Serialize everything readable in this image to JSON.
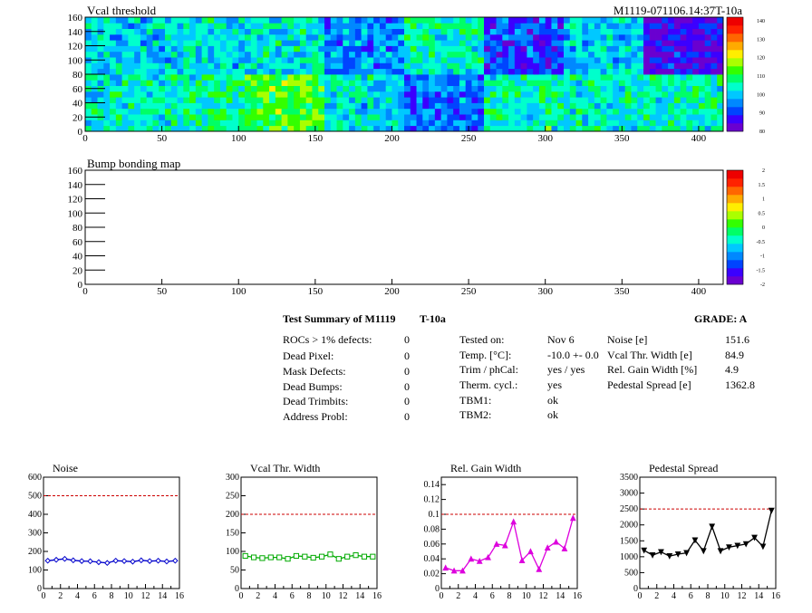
{
  "colors": {
    "palette": [
      "#6a00d0",
      "#3b00ff",
      "#0044ff",
      "#0088ff",
      "#00c8ff",
      "#00ffcc",
      "#00ff66",
      "#33ff00",
      "#aaff00",
      "#ffee00",
      "#ffaa00",
      "#ff6600",
      "#ff2200",
      "#ee0000"
    ],
    "ref_line": "#cc0000",
    "noise": "#0000cc",
    "vcal": "#00aa00",
    "gain": "#dd00dd",
    "ped": "#000000"
  },
  "chart_data": [
    {
      "type": "heatmap",
      "title": "Vcal threshold",
      "id_label": "M1119-071106.14:37T-10a",
      "xlim": [
        0,
        416
      ],
      "ylim": [
        0,
        160
      ],
      "xticks": [
        0,
        50,
        100,
        150,
        200,
        250,
        300,
        350,
        400
      ],
      "yticks": [
        0,
        20,
        40,
        60,
        80,
        100,
        120,
        140,
        160
      ],
      "colorbar": {
        "range": [
          80,
          142
        ],
        "ticks": [
          80,
          90,
          100,
          110,
          120,
          130,
          140
        ]
      },
      "rocs_top": [
        100,
        102,
        103,
        96,
        105,
        90,
        100,
        86
      ],
      "rocs_bottom": [
        104,
        105,
        112,
        102,
        94,
        106,
        104,
        105
      ]
    },
    {
      "type": "heatmap",
      "title": "Bump bonding map",
      "xlim": [
        0,
        416
      ],
      "ylim": [
        0,
        160
      ],
      "xticks": [
        0,
        50,
        100,
        150,
        200,
        250,
        300,
        350,
        400
      ],
      "yticks": [
        0,
        20,
        40,
        60,
        80,
        100,
        120,
        140,
        160
      ],
      "colorbar": {
        "range": [
          -2,
          2
        ],
        "ticks": [
          -2,
          -1.5,
          -1,
          -0.5,
          0,
          0.5,
          1,
          1.5,
          2
        ]
      }
    },
    {
      "type": "line",
      "title": "Noise",
      "xlim": [
        0,
        16
      ],
      "ylim": [
        0,
        600
      ],
      "xticks": [
        0,
        2,
        4,
        6,
        8,
        10,
        12,
        14,
        16
      ],
      "yticks": [
        0,
        100,
        200,
        300,
        400,
        500,
        600
      ],
      "ref": 500,
      "marker": "diamond",
      "x": [
        0.5,
        1.5,
        2.5,
        3.5,
        4.5,
        5.5,
        6.5,
        7.5,
        8.5,
        9.5,
        10.5,
        11.5,
        12.5,
        13.5,
        14.5,
        15.5
      ],
      "y": [
        150,
        155,
        160,
        152,
        148,
        147,
        142,
        138,
        150,
        148,
        145,
        152,
        148,
        150,
        146,
        150
      ]
    },
    {
      "type": "line",
      "title": "Vcal Thr. Width",
      "xlim": [
        0,
        16
      ],
      "ylim": [
        0,
        300
      ],
      "xticks": [
        0,
        2,
        4,
        6,
        8,
        10,
        12,
        14,
        16
      ],
      "yticks": [
        0,
        50,
        100,
        150,
        200,
        250,
        300
      ],
      "ref": 200,
      "marker": "square",
      "x": [
        0.5,
        1.5,
        2.5,
        3.5,
        4.5,
        5.5,
        6.5,
        7.5,
        8.5,
        9.5,
        10.5,
        11.5,
        12.5,
        13.5,
        14.5,
        15.5
      ],
      "y": [
        88,
        84,
        82,
        84,
        84,
        80,
        88,
        86,
        83,
        86,
        92,
        80,
        86,
        90,
        86,
        86
      ]
    },
    {
      "type": "line",
      "title": "Rel. Gain Width",
      "xlim": [
        0,
        16
      ],
      "ylim": [
        0,
        0.15
      ],
      "xticks": [
        0,
        2,
        4,
        6,
        8,
        10,
        12,
        14,
        16
      ],
      "yticks": [
        0,
        0.02,
        0.04,
        0.06,
        0.08,
        0.1,
        0.12,
        0.14
      ],
      "ref": 0.1,
      "marker": "triangle",
      "x": [
        0.5,
        1.5,
        2.5,
        3.5,
        4.5,
        5.5,
        6.5,
        7.5,
        8.5,
        9.5,
        10.5,
        11.5,
        12.5,
        13.5,
        14.5,
        15.5
      ],
      "y": [
        0.028,
        0.024,
        0.024,
        0.04,
        0.037,
        0.042,
        0.06,
        0.058,
        0.09,
        0.038,
        0.05,
        0.026,
        0.055,
        0.063,
        0.054,
        0.095
      ]
    },
    {
      "type": "line",
      "title": "Pedestal Spread",
      "xlim": [
        0,
        16
      ],
      "ylim": [
        0,
        3500
      ],
      "xticks": [
        0,
        2,
        4,
        6,
        8,
        10,
        12,
        14,
        16
      ],
      "yticks": [
        0,
        500,
        1000,
        1500,
        2000,
        2500,
        3000,
        3500
      ],
      "ref": 2500,
      "marker": "triangle-down",
      "x": [
        0.5,
        1.5,
        2.5,
        3.5,
        4.5,
        5.5,
        6.5,
        7.5,
        8.5,
        9.5,
        10.5,
        11.5,
        12.5,
        13.5,
        14.5,
        15.5
      ],
      "y": [
        1200,
        1050,
        1150,
        1020,
        1080,
        1120,
        1520,
        1180,
        1950,
        1180,
        1300,
        1350,
        1400,
        1600,
        1320,
        2450
      ]
    }
  ],
  "summary": {
    "title": "Test Summary of M1119",
    "test_id": "T-10a",
    "grade": "GRADE:  A",
    "defects": [
      {
        "label": "ROCs > 1% defects:",
        "value": "0"
      },
      {
        "label": "Dead Pixel:",
        "value": "0"
      },
      {
        "label": "Mask Defects:",
        "value": "0"
      },
      {
        "label": "Dead Bumps:",
        "value": "0"
      },
      {
        "label": "Dead Trimbits:",
        "value": "0"
      },
      {
        "label": "Address Probl:",
        "value": "0"
      }
    ],
    "conditions": [
      {
        "label": "Tested on:",
        "value": "Nov 6"
      },
      {
        "label": "Temp. [°C]:",
        "value": "-10.0 +- 0.0"
      },
      {
        "label": "Trim / phCal:",
        "value": "yes / yes"
      },
      {
        "label": "Therm. cycl.:",
        "value": "yes"
      },
      {
        "label": "TBM1:",
        "value": "ok"
      },
      {
        "label": "TBM2:",
        "value": "ok"
      }
    ],
    "results": [
      {
        "label": "Noise [e]",
        "value": "151.6"
      },
      {
        "label": "Vcal Thr. Width [e]",
        "value": "84.9"
      },
      {
        "label": "Rel. Gain Width [%]",
        "value": "4.9"
      },
      {
        "label": "Pedestal Spread [e]",
        "value": "1362.8"
      }
    ]
  }
}
